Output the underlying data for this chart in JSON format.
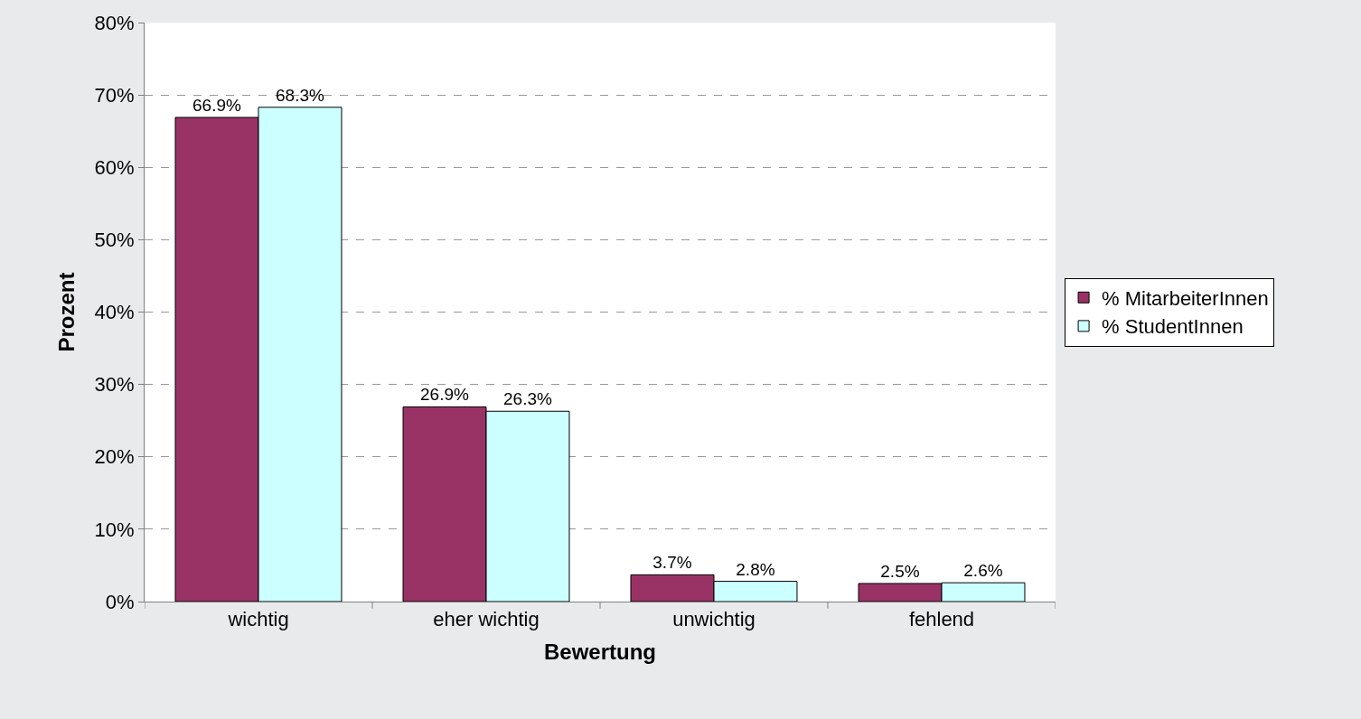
{
  "chart_data": {
    "type": "bar",
    "xlabel": "Bewertung",
    "ylabel": "Prozent",
    "categories": [
      "wichtig",
      "eher wichtig",
      "unwichtig",
      "fehlend"
    ],
    "series": [
      {
        "name": "% MitarbeiterInnen",
        "color": "#993366",
        "values": [
          66.9,
          26.9,
          3.7,
          2.5
        ],
        "value_labels": [
          "66.9%",
          "26.9%",
          "3.7%",
          "2.5%"
        ]
      },
      {
        "name": "% StudentInnen",
        "color": "#ccffff",
        "values": [
          68.3,
          26.3,
          2.8,
          2.6
        ],
        "value_labels": [
          "68.3%",
          "26.3%",
          "2.8%",
          "2.6%"
        ]
      }
    ],
    "ylim": [
      0,
      80
    ],
    "yticks": [
      {
        "value": 0,
        "label": "0%"
      },
      {
        "value": 10,
        "label": "10%"
      },
      {
        "value": 20,
        "label": "20%"
      },
      {
        "value": 30,
        "label": "30%"
      },
      {
        "value": 40,
        "label": "40%"
      },
      {
        "value": 50,
        "label": "50%"
      },
      {
        "value": 60,
        "label": "60%"
      },
      {
        "value": 70,
        "label": "70%"
      },
      {
        "value": 80,
        "label": "80%"
      }
    ],
    "grid": "y",
    "legend": "right"
  }
}
